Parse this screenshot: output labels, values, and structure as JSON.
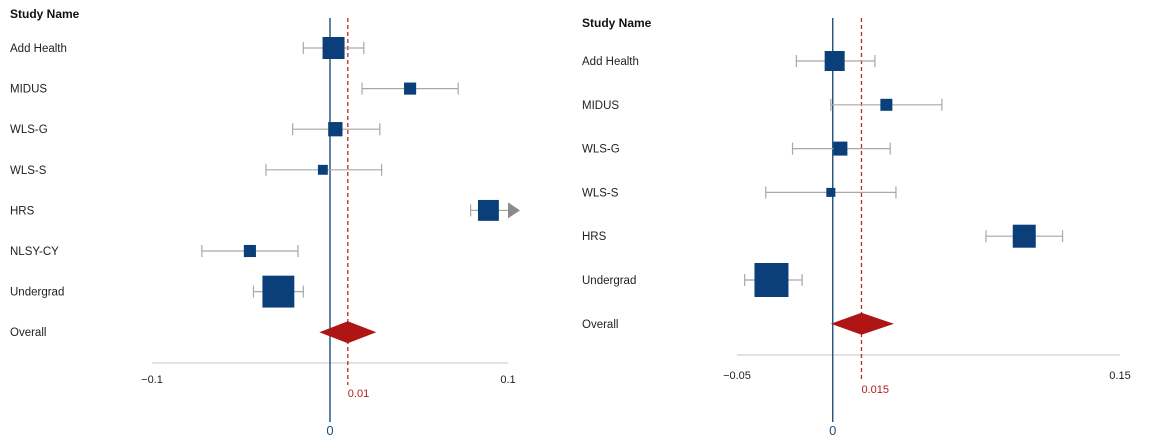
{
  "colors": {
    "box": "#0b3f7a",
    "ci": "#a8a8a8",
    "axis": "#c4c4c4",
    "zero_line": "#1f4e79",
    "reference": "#c0282d",
    "diamond": "#b01515",
    "overall_label": "#a01a1a",
    "arrow": "#8a8a8a"
  },
  "chart_data": [
    {
      "type": "forest",
      "header": "Study Name",
      "xlim": [
        -0.1,
        0.1
      ],
      "xticks": [
        "−0.1",
        "0.1"
      ],
      "zero_label": "0",
      "reference": {
        "value": 0.01,
        "label": "0.01"
      },
      "studies": [
        {
          "name": "Add Health",
          "estimate": 0.002,
          "ci_low": -0.015,
          "ci_high": 0.019,
          "weight": 1.0,
          "clipped": false
        },
        {
          "name": "MIDUS",
          "estimate": 0.045,
          "ci_low": 0.018,
          "ci_high": 0.072,
          "weight": 0.55,
          "clipped": false
        },
        {
          "name": "WLS-G",
          "estimate": 0.003,
          "ci_low": -0.021,
          "ci_high": 0.028,
          "weight": 0.65,
          "clipped": false
        },
        {
          "name": "WLS-S",
          "estimate": -0.004,
          "ci_low": -0.036,
          "ci_high": 0.029,
          "weight": 0.45,
          "clipped": false
        },
        {
          "name": "HRS",
          "estimate": 0.089,
          "ci_low": 0.079,
          "ci_high": 0.1,
          "weight": 0.95,
          "clipped": true
        },
        {
          "name": "NLSY-CY",
          "estimate": -0.045,
          "ci_low": -0.072,
          "ci_high": -0.018,
          "weight": 0.55,
          "clipped": false
        },
        {
          "name": "Undergrad",
          "estimate": -0.029,
          "ci_low": -0.043,
          "ci_high": -0.015,
          "weight": 1.45,
          "clipped": false
        }
      ],
      "overall": {
        "name": "Overall",
        "estimate": 0.01,
        "ci_low": -0.006,
        "ci_high": 0.026
      }
    },
    {
      "type": "forest",
      "header": "Study Name",
      "xlim": [
        -0.05,
        0.15
      ],
      "xticks": [
        "−0.05",
        "0.15"
      ],
      "zero_label": "0",
      "reference": {
        "value": 0.015,
        "label": "0.015"
      },
      "studies": [
        {
          "name": "Add Health",
          "estimate": 0.001,
          "ci_low": -0.019,
          "ci_high": 0.022,
          "weight": 1.0,
          "clipped": false
        },
        {
          "name": "MIDUS",
          "estimate": 0.028,
          "ci_low": -0.001,
          "ci_high": 0.057,
          "weight": 0.6,
          "clipped": false
        },
        {
          "name": "WLS-G",
          "estimate": 0.004,
          "ci_low": -0.021,
          "ci_high": 0.03,
          "weight": 0.7,
          "clipped": false
        },
        {
          "name": "WLS-S",
          "estimate": -0.001,
          "ci_low": -0.035,
          "ci_high": 0.033,
          "weight": 0.45,
          "clipped": false
        },
        {
          "name": "HRS",
          "estimate": 0.1,
          "ci_low": 0.08,
          "ci_high": 0.12,
          "weight": 1.15,
          "clipped": false
        },
        {
          "name": "Undergrad",
          "estimate": -0.032,
          "ci_low": -0.046,
          "ci_high": -0.016,
          "weight": 1.7,
          "clipped": false
        }
      ],
      "overall": {
        "name": "Overall",
        "estimate": 0.015,
        "ci_low": -0.001,
        "ci_high": 0.032
      }
    }
  ]
}
